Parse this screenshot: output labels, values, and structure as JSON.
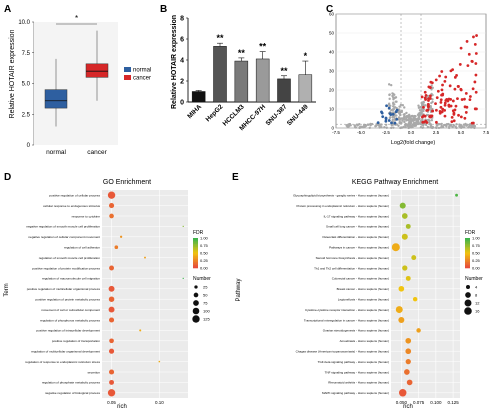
{
  "panels": {
    "A": "A",
    "B": "B",
    "C": "C",
    "D": "D",
    "E": "E"
  },
  "colors": {
    "normal": "#2e5fa0",
    "cancer": "#d62728",
    "bar_colors": [
      "#111111",
      "#555555",
      "#7a7a7a",
      "#9a9a9a",
      "#444444",
      "#b0b0b0"
    ],
    "volcano_up": "#d62728",
    "volcano_down": "#2e5fa0",
    "volcano_ns": "#a9a9a9",
    "fdr_high": "#3cb44b",
    "fdr_mid": "#f1c40f",
    "fdr_low": "#e74c3c"
  },
  "chart_data": [
    {
      "id": "A",
      "type": "box",
      "ylabel": "Relative HOTAIR expression",
      "ylim": [
        0,
        10
      ],
      "yticks": [
        "0",
        "2.5",
        "5.0",
        "7.5",
        "10.0"
      ],
      "yticks_values": [
        0,
        2.5,
        5,
        7.5,
        10
      ],
      "categories": [
        "normal",
        "cancer"
      ],
      "boxes": [
        {
          "name": "normal",
          "min": 1.5,
          "q1": 3.0,
          "median": 3.6,
          "q3": 4.5,
          "max": 7.0
        },
        {
          "name": "cancer",
          "min": 3.6,
          "q1": 5.5,
          "median": 6.0,
          "q3": 6.6,
          "max": 9.3
        }
      ],
      "legend": [
        "normal",
        "cancer"
      ],
      "significance": "*"
    },
    {
      "id": "B",
      "type": "bar",
      "ylabel": "Relative HOTAIR expression",
      "ylim": [
        0,
        8
      ],
      "yticks": [
        0,
        2,
        4,
        6,
        8
      ],
      "categories": [
        "MIHA",
        "HepG2",
        "HCCLM3",
        "MHCC-97H",
        "SNU-387",
        "SNU-449"
      ],
      "values": [
        1.0,
        5.3,
        3.9,
        4.1,
        2.2,
        2.6
      ],
      "errors": [
        0.1,
        0.3,
        0.3,
        0.7,
        0.3,
        1.3
      ],
      "significance": [
        "",
        "**",
        "**",
        "**",
        "**",
        "*"
      ]
    },
    {
      "id": "C",
      "type": "scatter",
      "xlabel": "Log2(fold change)",
      "xlim": [
        -7.5,
        7.5
      ],
      "xticks": [
        "-7.5",
        "-5.0",
        "-2.5",
        "0.0",
        "2.5",
        "5.0",
        "7.5"
      ],
      "xticks_values": [
        -7.5,
        -5,
        -2.5,
        0,
        2.5,
        5,
        7.5
      ],
      "ylim": [
        0,
        60
      ],
      "yticks": [
        0,
        10,
        20,
        30,
        40,
        50,
        60
      ],
      "thresholds_x": [
        -1,
        1
      ]
    },
    {
      "id": "D",
      "type": "dot",
      "title": "GO Enrichment",
      "ylabel": "Term",
      "xlabel": "rich",
      "xticks": [
        "0.05",
        "0.10"
      ],
      "xticks_values": [
        0.05,
        0.1
      ],
      "xlim": [
        0.04,
        0.13
      ],
      "terms": [
        "positive regulation of cellular process",
        "cellular response to endogenous stimulus",
        "response to cytokine",
        "negative regulation of smooth muscle cell proliferation",
        "negative regulation of cellular component movement",
        "regulation of cell adhesion",
        "regulation of smooth muscle cell proliferation",
        "positive regulation of protein modification process",
        "regulation of macromolecule cell migration",
        "positive regulation of multicellular organismal process",
        "positive regulation of protein metabolic process",
        "movement of cell or subcellular component",
        "regulation of phosphorus metabolic process",
        "positive regulation of intracellular development",
        "positive regulation of transportation",
        "regulation of multicellular organismal development",
        "regulation of response to endoplasmic reticulum stress",
        "secretion",
        "regulation of phosphate metabolic process",
        "negative regulation of biological process"
      ],
      "rich": [
        0.05,
        0.05,
        0.05,
        0.125,
        0.06,
        0.055,
        0.085,
        0.05,
        0.125,
        0.05,
        0.05,
        0.05,
        0.05,
        0.08,
        0.05,
        0.05,
        0.1,
        0.05,
        0.05,
        0.05
      ],
      "number": [
        125,
        60,
        50,
        4,
        12,
        30,
        8,
        55,
        4,
        80,
        70,
        80,
        60,
        10,
        50,
        60,
        6,
        60,
        55,
        125
      ],
      "fdr": [
        0.05,
        0.1,
        0.15,
        0.8,
        0.3,
        0.2,
        0.35,
        0.1,
        1.0,
        0.05,
        0.1,
        0.05,
        0.1,
        0.4,
        0.1,
        0.05,
        0.4,
        0.1,
        0.05,
        0.05
      ],
      "legend_fdr_title": "FDR",
      "legend_fdr_ticks": [
        "1.00",
        "0.75",
        "0.50",
        "0.25",
        "0.00"
      ],
      "legend_number_title": "Number",
      "legend_number_values": [
        25,
        50,
        75,
        100,
        125
      ]
    },
    {
      "id": "E",
      "type": "dot",
      "title": "KEGG Pathway Enrichment",
      "ylabel": "Pathway",
      "xlabel": "rich",
      "xticks": [
        "0.050",
        "0.075",
        "0.100",
        "0.125"
      ],
      "xticks_values": [
        0.05,
        0.075,
        0.1,
        0.125
      ],
      "xlim": [
        0.035,
        0.135
      ],
      "terms": [
        "Glycosphingolipid biosynthesis - ganglio series - Homo sapiens (human)",
        "Protein processing in endoplasmic reticulum - Homo sapiens (human)",
        "IL-17 signaling pathway - Homo sapiens (human)",
        "Small cell lung cancer - Homo sapiens (human)",
        "Osteoclast differentiation - Homo sapiens (human)",
        "Pathways in cancer - Homo sapiens (human)",
        "Steroid hormone biosynthesis - Homo sapiens (human)",
        "Th1 and Th2 cell differentiation - Homo sapiens (human)",
        "Colorectal cancer - Homo sapiens (human)",
        "Breast cancer - Homo sapiens (human)",
        "Legionellosis - Homo sapiens (human)",
        "Cytokine-cytokine receptor interaction - Homo sapiens (human)",
        "Transcriptional misregulation in cancer - Homo sapiens (human)",
        "Ovarian steroidogenesis - Homo sapiens (human)",
        "Amoebiasis - Homo sapiens (human)",
        "Chagas disease (American trypanosomiasis) - Homo sapiens (human)",
        "TGF-beta signaling pathway - Homo sapiens (human)",
        "TNF signaling pathway - Homo sapiens (human)",
        "Rheumatoid arthritis - Homo sapiens (human)",
        "MAPK signaling pathway - Homo sapiens (human)"
      ],
      "rich": [
        0.13,
        0.052,
        0.055,
        0.06,
        0.055,
        0.042,
        0.068,
        0.055,
        0.06,
        0.05,
        0.07,
        0.047,
        0.05,
        0.075,
        0.06,
        0.06,
        0.06,
        0.058,
        0.062,
        0.052
      ],
      "number": [
        2,
        9,
        8,
        6,
        9,
        16,
        6,
        7,
        6,
        8,
        5,
        12,
        9,
        5,
        8,
        8,
        7,
        8,
        8,
        14
      ],
      "fdr": [
        0.95,
        0.8,
        0.7,
        0.7,
        0.6,
        0.4,
        0.6,
        0.6,
        0.55,
        0.5,
        0.5,
        0.4,
        0.35,
        0.35,
        0.3,
        0.25,
        0.2,
        0.15,
        0.1,
        0.05
      ],
      "legend_fdr_title": "FDR",
      "legend_fdr_ticks": [
        "1.00",
        "0.75",
        "0.50",
        "0.25",
        "0.00"
      ],
      "legend_number_title": "Number",
      "legend_number_values": [
        4,
        8,
        12,
        16
      ]
    }
  ]
}
